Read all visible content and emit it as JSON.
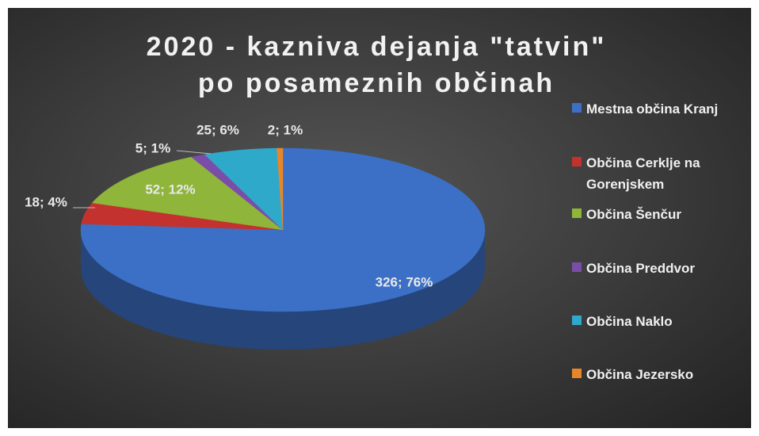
{
  "chart_data": {
    "type": "pie",
    "title": "2020 - kazniva dejanja \"tatvin\" po posameznih občinah",
    "categories": [
      "Mestna občina Kranj",
      "Občina Cerklje na Gorenjskem",
      "Občina Šenčur",
      "Občina Preddvor",
      "Občina Naklo",
      "Občina Jezersko"
    ],
    "values": [
      326,
      18,
      52,
      5,
      25,
      2
    ],
    "value_labels": [
      "326; 76%",
      "18; 4%",
      "52; 12%",
      "5; 1%",
      "25; 6%",
      "2; 1%"
    ],
    "colors": [
      "#3b70c6",
      "#c3322e",
      "#8fb53b",
      "#7a4ea8",
      "#2fa9c9",
      "#e9862a"
    ],
    "legend": "right"
  }
}
